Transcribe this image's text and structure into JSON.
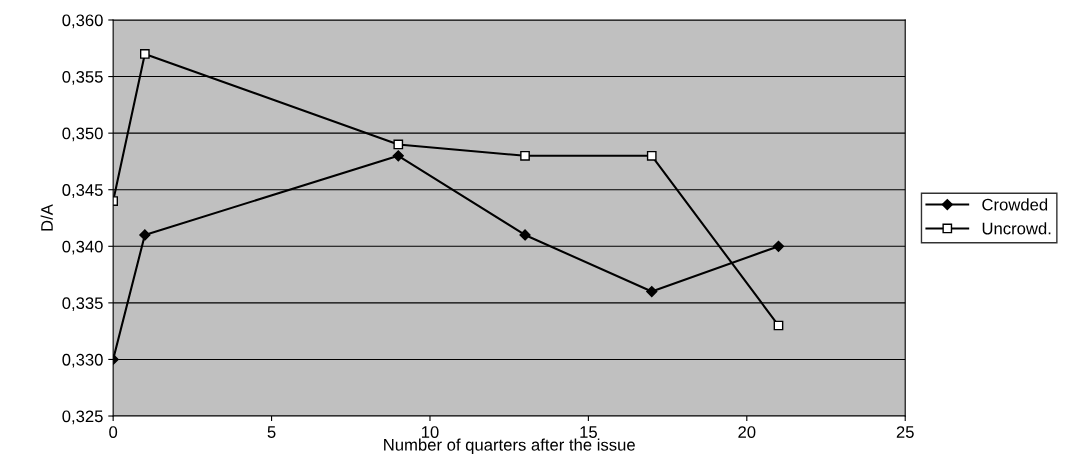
{
  "chart_data": {
    "type": "line",
    "xlabel": "Number of quarters after the issue",
    "ylabel": "D/A",
    "x": [
      0,
      1,
      9,
      13,
      17,
      21
    ],
    "series": [
      {
        "name": "Crowded",
        "color": "#000000",
        "marker": "diamond",
        "values": [
          0.33,
          0.341,
          0.348,
          0.341,
          0.336,
          0.34
        ]
      },
      {
        "name": "Uncrowd.",
        "color": "#000000",
        "marker": "square",
        "values": [
          0.344,
          0.357,
          0.349,
          0.348,
          0.348,
          0.333
        ]
      }
    ],
    "xlim": [
      0,
      25
    ],
    "xticks": [
      0,
      5,
      10,
      15,
      20,
      25
    ],
    "ylim": [
      0.325,
      0.36
    ],
    "yticks": [
      {
        "value": 0.325,
        "label": "0,325"
      },
      {
        "value": 0.33,
        "label": "0,330"
      },
      {
        "value": 0.335,
        "label": "0,335"
      },
      {
        "value": 0.34,
        "label": "0,340"
      },
      {
        "value": 0.345,
        "label": "0,345"
      },
      {
        "value": 0.35,
        "label": "0,350"
      },
      {
        "value": 0.355,
        "label": "0,355"
      },
      {
        "value": 0.36,
        "label": "0,360"
      }
    ],
    "grid": "y",
    "legend": "right",
    "line_style": "solid"
  }
}
